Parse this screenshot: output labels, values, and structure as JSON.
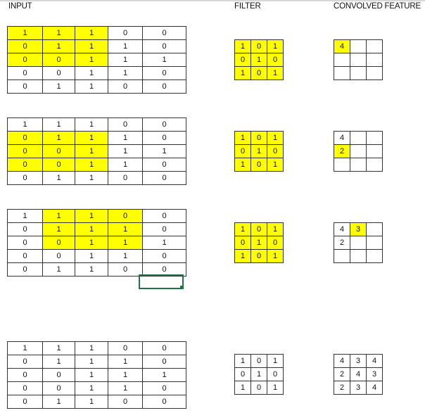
{
  "headers": {
    "input": "INPUT",
    "filter": "FILTER",
    "output": "CONVOLVED FEATURE"
  },
  "highlight_color": "#ffff00",
  "selection_color": "#217346",
  "input": [
    [
      1,
      1,
      1,
      0,
      0
    ],
    [
      0,
      1,
      1,
      1,
      0
    ],
    [
      0,
      0,
      1,
      1,
      1
    ],
    [
      0,
      0,
      1,
      1,
      0
    ],
    [
      0,
      1,
      1,
      0,
      0
    ]
  ],
  "filter": [
    [
      1,
      0,
      1
    ],
    [
      0,
      1,
      0
    ],
    [
      1,
      0,
      1
    ]
  ],
  "steps": [
    {
      "window": {
        "row": 0,
        "col": 0
      },
      "filter_highlight": true,
      "output": [
        [
          4,
          "",
          ""
        ],
        [
          "",
          "",
          ""
        ],
        [
          "",
          "",
          ""
        ]
      ],
      "output_highlight": {
        "row": 0,
        "col": 0
      }
    },
    {
      "window": {
        "row": 1,
        "col": 0
      },
      "filter_highlight": true,
      "output": [
        [
          4,
          "",
          ""
        ],
        [
          2,
          "",
          ""
        ],
        [
          "",
          "",
          ""
        ]
      ],
      "output_highlight": {
        "row": 1,
        "col": 0
      }
    },
    {
      "window": {
        "row": 0,
        "col": 1
      },
      "filter_highlight": true,
      "output": [
        [
          4,
          3,
          ""
        ],
        [
          2,
          "",
          ""
        ],
        [
          "",
          "",
          ""
        ]
      ],
      "output_highlight": {
        "row": 0,
        "col": 1
      }
    },
    {
      "window": null,
      "filter_highlight": false,
      "output": [
        [
          4,
          3,
          4
        ],
        [
          2,
          4,
          3
        ],
        [
          2,
          3,
          4
        ]
      ],
      "output_highlight": null
    }
  ]
}
